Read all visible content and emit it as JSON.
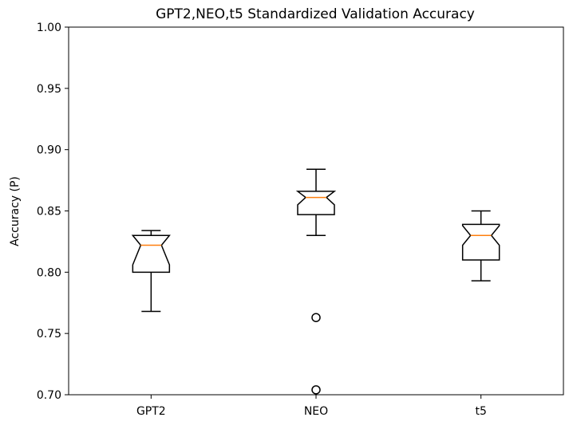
{
  "chart_data": {
    "type": "boxplot",
    "title": "GPT2,NEO,t5 Standardized Validation Accuracy",
    "xlabel": "",
    "ylabel": "Accuracy (P)",
    "ylim": [
      0.7,
      1.0
    ],
    "yticks": [
      "0.70",
      "0.75",
      "0.80",
      "0.85",
      "0.90",
      "0.95",
      "1.00"
    ],
    "notched": true,
    "grid": false,
    "categories": [
      "GPT2",
      "NEO",
      "t5"
    ],
    "series": [
      {
        "whisker_low": 0.768,
        "q1": 0.8,
        "median": 0.822,
        "q3": 0.83,
        "whisker_high": 0.834,
        "notch_low": 0.806,
        "notch_high": 0.838,
        "outliers": []
      },
      {
        "whisker_low": 0.83,
        "q1": 0.847,
        "median": 0.861,
        "q3": 0.866,
        "whisker_high": 0.884,
        "notch_low": 0.855,
        "notch_high": 0.867,
        "outliers": [
          0.763,
          0.704
        ]
      },
      {
        "whisker_low": 0.793,
        "q1": 0.81,
        "median": 0.83,
        "q3": 0.839,
        "whisker_high": 0.85,
        "notch_low": 0.822,
        "notch_high": 0.838,
        "outliers": []
      }
    ],
    "colors": {
      "box": "#000000",
      "median": "#ff7f0e",
      "outlier": "#000000"
    }
  }
}
